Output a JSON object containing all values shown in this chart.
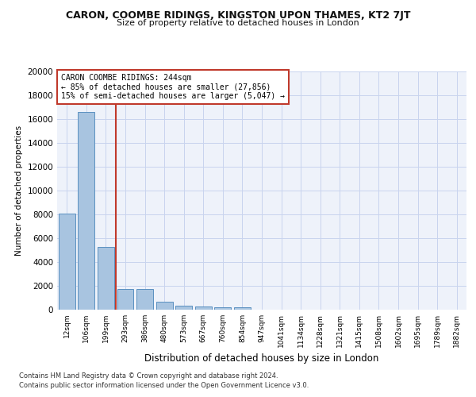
{
  "title": "CARON, COOMBE RIDINGS, KINGSTON UPON THAMES, KT2 7JT",
  "subtitle": "Size of property relative to detached houses in London",
  "xlabel": "Distribution of detached houses by size in London",
  "ylabel": "Number of detached properties",
  "categories": [
    "12sqm",
    "106sqm",
    "199sqm",
    "293sqm",
    "386sqm",
    "480sqm",
    "573sqm",
    "667sqm",
    "760sqm",
    "854sqm",
    "947sqm",
    "1041sqm",
    "1134sqm",
    "1228sqm",
    "1321sqm",
    "1415sqm",
    "1508sqm",
    "1602sqm",
    "1695sqm",
    "1789sqm",
    "1882sqm"
  ],
  "values": [
    8100,
    16600,
    5300,
    1750,
    1750,
    700,
    350,
    280,
    230,
    200,
    0,
    0,
    0,
    0,
    0,
    0,
    0,
    0,
    0,
    0,
    0
  ],
  "bar_color": "#a8c4e0",
  "bar_edge_color": "#5a90c0",
  "vline_color": "#c0392b",
  "annotation_text": "CARON COOMBE RIDINGS: 244sqm\n← 85% of detached houses are smaller (27,856)\n15% of semi-detached houses are larger (5,047) →",
  "annotation_box_color": "#c0392b",
  "ylim": [
    0,
    20000
  ],
  "yticks": [
    0,
    2000,
    4000,
    6000,
    8000,
    10000,
    12000,
    14000,
    16000,
    18000,
    20000
  ],
  "bg_color": "#eef2fa",
  "grid_color": "#c8d4ee",
  "footer1": "Contains HM Land Registry data © Crown copyright and database right 2024.",
  "footer2": "Contains public sector information licensed under the Open Government Licence v3.0."
}
